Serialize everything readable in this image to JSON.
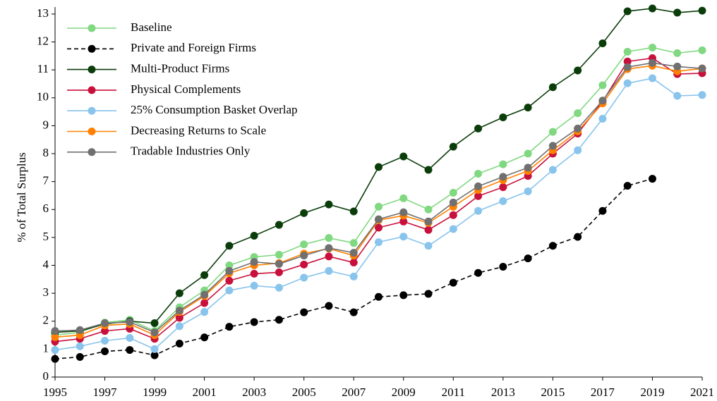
{
  "chart_data": {
    "type": "line",
    "ylabel": "% of Total Surplus",
    "x": [
      1995,
      1996,
      1997,
      1998,
      1999,
      2000,
      2001,
      2002,
      2003,
      2004,
      2005,
      2006,
      2007,
      2008,
      2009,
      2010,
      2011,
      2012,
      2013,
      2014,
      2015,
      2016,
      2017,
      2018,
      2019,
      2020,
      2021
    ],
    "xlim": [
      1995,
      2021
    ],
    "xticks": [
      1995,
      1997,
      1999,
      2001,
      2003,
      2005,
      2007,
      2009,
      2011,
      2013,
      2015,
      2017,
      2019,
      2021
    ],
    "ylim": [
      0,
      13.25
    ],
    "yticks": [
      0,
      1,
      2,
      3,
      4,
      5,
      6,
      7,
      8,
      9,
      10,
      11,
      12,
      13
    ],
    "legend": "upper-left",
    "series": [
      {
        "name": "Baseline",
        "color": "#80d880",
        "linestyle": "solid",
        "values": [
          1.5,
          1.6,
          1.95,
          2.05,
          1.65,
          2.5,
          3.1,
          4.0,
          4.3,
          4.38,
          4.75,
          4.98,
          4.8,
          6.1,
          6.4,
          6.0,
          6.6,
          7.28,
          7.62,
          8.0,
          8.78,
          9.45,
          10.45,
          11.65,
          11.8,
          11.6,
          11.7
        ]
      },
      {
        "name": "Private and Foreign Firms",
        "color": "#000000",
        "linestyle": "dashed",
        "values": [
          0.65,
          0.72,
          0.92,
          0.97,
          0.78,
          1.2,
          1.42,
          1.8,
          1.97,
          2.05,
          2.32,
          2.55,
          2.32,
          2.87,
          2.93,
          2.98,
          3.38,
          3.73,
          3.95,
          4.25,
          4.7,
          5.02,
          5.95,
          6.85,
          7.1,
          null,
          null
        ]
      },
      {
        "name": "Multi-Product Firms",
        "color": "#0b3d0b",
        "linestyle": "solid",
        "values": [
          1.6,
          1.65,
          1.9,
          2.0,
          1.93,
          3.0,
          3.65,
          4.7,
          5.06,
          5.45,
          5.87,
          6.18,
          5.93,
          7.52,
          7.9,
          7.42,
          8.25,
          8.9,
          9.3,
          9.65,
          10.38,
          10.98,
          11.95,
          13.1,
          13.2,
          13.05,
          13.12
        ]
      },
      {
        "name": "Physical Complements",
        "color": "#c8103c",
        "linestyle": "solid",
        "values": [
          1.27,
          1.37,
          1.65,
          1.73,
          1.37,
          2.12,
          2.65,
          3.45,
          3.7,
          3.75,
          4.03,
          4.32,
          4.1,
          5.35,
          5.57,
          5.27,
          5.8,
          6.48,
          6.8,
          7.2,
          8.0,
          8.72,
          9.87,
          11.3,
          11.42,
          10.85,
          10.88
        ]
      },
      {
        "name": "25% Consumption Basket Overlap",
        "color": "#88c4ec",
        "linestyle": "solid",
        "values": [
          0.97,
          1.1,
          1.3,
          1.4,
          1.0,
          1.82,
          2.33,
          3.1,
          3.27,
          3.2,
          3.56,
          3.8,
          3.6,
          4.83,
          5.03,
          4.7,
          5.3,
          5.95,
          6.3,
          6.65,
          7.42,
          8.12,
          9.25,
          10.52,
          10.7,
          10.07,
          10.1
        ]
      },
      {
        "name": "Decreasing Returns to Scale",
        "color": "#ff8000",
        "linestyle": "solid",
        "values": [
          1.43,
          1.5,
          1.85,
          1.9,
          1.5,
          2.33,
          2.9,
          3.72,
          4.0,
          4.08,
          4.42,
          4.6,
          4.35,
          5.62,
          5.78,
          5.52,
          6.1,
          6.7,
          7.05,
          7.38,
          8.12,
          8.8,
          9.8,
          11.03,
          11.15,
          10.95,
          11.05
        ]
      },
      {
        "name": "Tradable Industries Only",
        "color": "#707070",
        "linestyle": "solid",
        "values": [
          1.65,
          1.68,
          1.93,
          1.97,
          1.6,
          2.38,
          2.95,
          3.8,
          4.12,
          4.05,
          4.35,
          4.62,
          4.45,
          5.65,
          5.9,
          5.57,
          6.25,
          6.83,
          7.17,
          7.5,
          8.28,
          8.9,
          9.9,
          11.1,
          11.25,
          11.12,
          11.05
        ]
      }
    ]
  }
}
